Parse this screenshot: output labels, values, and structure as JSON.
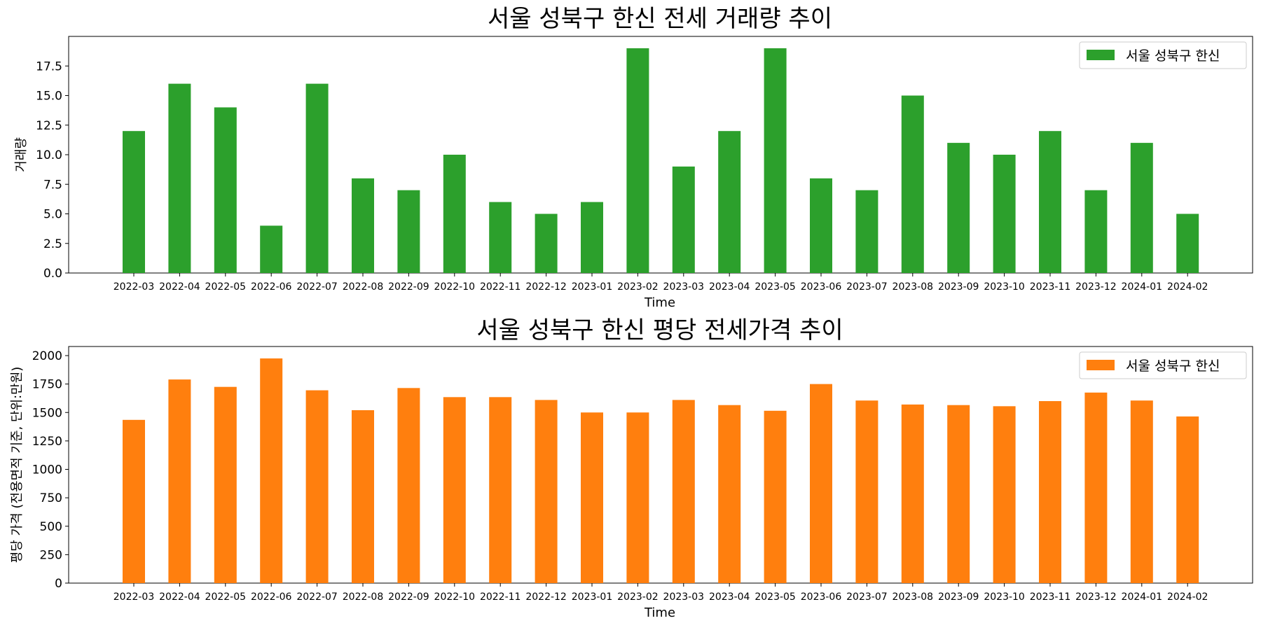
{
  "chart_data": [
    {
      "type": "bar",
      "title": "서울 성북구 한신 전세 거래량 추이",
      "xlabel": "Time",
      "ylabel": "거래량",
      "ylim": [
        0,
        20
      ],
      "yticks": [
        "0.0",
        "2.5",
        "5.0",
        "7.5",
        "10.0",
        "12.5",
        "15.0",
        "17.5"
      ],
      "yticks_values": [
        0,
        2.5,
        5,
        7.5,
        10,
        12.5,
        15,
        17.5
      ],
      "categories": [
        "2022-03",
        "2022-04",
        "2022-05",
        "2022-06",
        "2022-07",
        "2022-08",
        "2022-09",
        "2022-10",
        "2022-11",
        "2022-12",
        "2023-01",
        "2023-02",
        "2023-03",
        "2023-04",
        "2023-05",
        "2023-06",
        "2023-07",
        "2023-08",
        "2023-09",
        "2023-10",
        "2023-11",
        "2023-12",
        "2024-01",
        "2024-02"
      ],
      "series": [
        {
          "name": "서울 성북구 한신",
          "color": "#2ca02c",
          "values": [
            12,
            16,
            14,
            4,
            16,
            8,
            7,
            10,
            6,
            5,
            6,
            19,
            9,
            12,
            19,
            8,
            7,
            15,
            11,
            10,
            12,
            7,
            11,
            5
          ]
        }
      ],
      "legend_position": "top-right",
      "grid": false
    },
    {
      "type": "bar",
      "title": "서울 성북구 한신 평당 전세가격 추이",
      "xlabel": "Time",
      "ylabel": "평당 가격 (전용면적 기준, 단위:만원)",
      "ylim": [
        0,
        2080
      ],
      "yticks": [
        "0",
        "250",
        "500",
        "750",
        "1000",
        "1250",
        "1500",
        "1750",
        "2000"
      ],
      "yticks_values": [
        0,
        250,
        500,
        750,
        1000,
        1250,
        1500,
        1750,
        2000
      ],
      "categories": [
        "2022-03",
        "2022-04",
        "2022-05",
        "2022-06",
        "2022-07",
        "2022-08",
        "2022-09",
        "2022-10",
        "2022-11",
        "2022-12",
        "2023-01",
        "2023-02",
        "2023-03",
        "2023-04",
        "2023-05",
        "2023-06",
        "2023-07",
        "2023-08",
        "2023-09",
        "2023-10",
        "2023-11",
        "2023-12",
        "2024-01",
        "2024-02"
      ],
      "series": [
        {
          "name": "서울 성북구 한신",
          "color": "#ff7f0e",
          "values": [
            1435,
            1790,
            1725,
            1975,
            1695,
            1520,
            1715,
            1635,
            1635,
            1610,
            1500,
            1500,
            1610,
            1565,
            1515,
            1750,
            1605,
            1570,
            1565,
            1555,
            1600,
            1675,
            1605,
            1465
          ]
        }
      ],
      "legend_position": "top-right",
      "grid": false
    }
  ]
}
